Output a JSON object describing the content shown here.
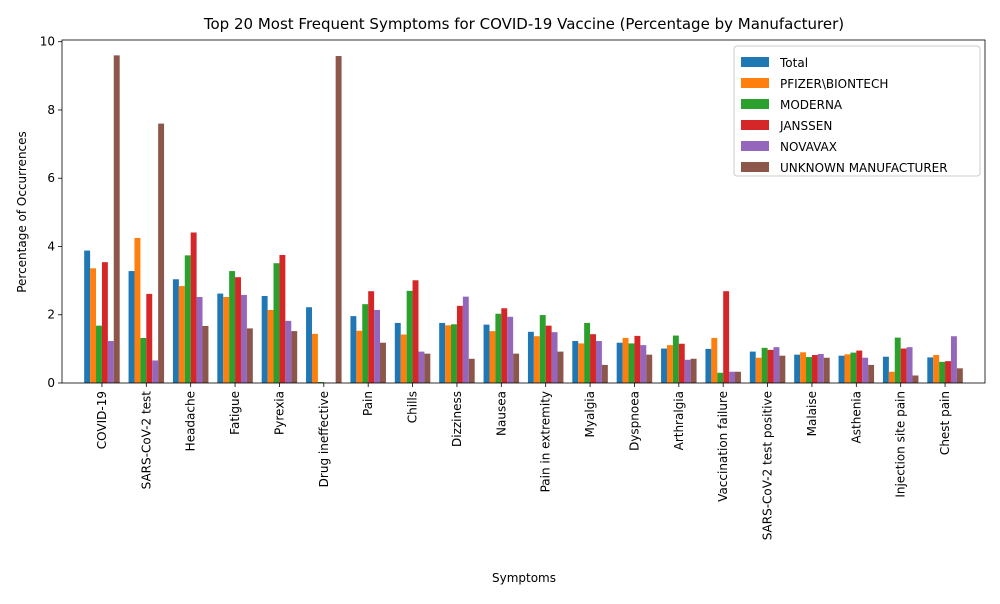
{
  "chart_data": {
    "type": "bar",
    "title": "Top 20 Most Frequent Symptoms for COVID-19 Vaccine (Percentage by Manufacturer)",
    "xlabel": "Symptoms",
    "ylabel": "Percentage of Occurrences",
    "ylim": [
      0,
      10.05
    ],
    "yticks": [
      0,
      2,
      4,
      6,
      8,
      10
    ],
    "grid": false,
    "legend_position": "top-right",
    "categories": [
      "COVID-19",
      "SARS-CoV-2 test",
      "Headache",
      "Fatigue",
      "Pyrexia",
      "Drug ineffective",
      "Pain",
      "Chills",
      "Dizziness",
      "Nausea",
      "Pain in extremity",
      "Myalgia",
      "Dyspnoea",
      "Arthralgia",
      "Vaccination failure",
      "SARS-CoV-2 test positive",
      "Malaise",
      "Asthenia",
      "Injection site pain",
      "Chest pain"
    ],
    "series": [
      {
        "name": "Total",
        "color": "#1f77b4",
        "values": [
          3.88,
          3.28,
          3.04,
          2.62,
          2.55,
          2.22,
          1.96,
          1.76,
          1.76,
          1.71,
          1.5,
          1.23,
          1.18,
          1.01,
          1.0,
          0.92,
          0.83,
          0.8,
          0.77,
          0.75
        ]
      },
      {
        "name": "PFIZER\\BIONTECH",
        "color": "#ff7f0e",
        "values": [
          3.36,
          4.25,
          2.84,
          2.52,
          2.14,
          1.44,
          1.53,
          1.42,
          1.69,
          1.52,
          1.37,
          1.16,
          1.32,
          1.11,
          1.32,
          0.74,
          0.9,
          0.84,
          0.33,
          0.82
        ]
      },
      {
        "name": "MODERNA",
        "color": "#2ca02c",
        "values": [
          1.68,
          1.32,
          3.74,
          3.28,
          3.51,
          0.03,
          2.31,
          2.7,
          1.72,
          2.03,
          1.99,
          1.76,
          1.16,
          1.39,
          0.3,
          1.03,
          0.76,
          0.89,
          1.33,
          0.62
        ]
      },
      {
        "name": "JANSSEN",
        "color": "#d62728",
        "values": [
          3.54,
          2.61,
          4.41,
          3.1,
          3.75,
          0.01,
          2.69,
          3.01,
          2.26,
          2.19,
          1.68,
          1.43,
          1.38,
          1.15,
          2.69,
          0.97,
          0.82,
          0.95,
          1.01,
          0.64
        ]
      },
      {
        "name": "NOVAVAX",
        "color": "#9467bd",
        "values": [
          1.23,
          0.66,
          2.52,
          2.58,
          1.82,
          0.0,
          2.14,
          0.92,
          2.53,
          1.94,
          1.49,
          1.23,
          1.11,
          0.68,
          0.33,
          1.05,
          0.85,
          0.74,
          1.05,
          1.37
        ]
      },
      {
        "name": "UNKNOWN MANUFACTURER",
        "color": "#8c564b",
        "values": [
          9.6,
          7.6,
          1.67,
          1.6,
          1.52,
          9.58,
          1.18,
          0.86,
          0.71,
          0.86,
          0.92,
          0.53,
          0.83,
          0.71,
          0.33,
          0.8,
          0.74,
          0.53,
          0.22,
          0.43
        ]
      }
    ]
  }
}
